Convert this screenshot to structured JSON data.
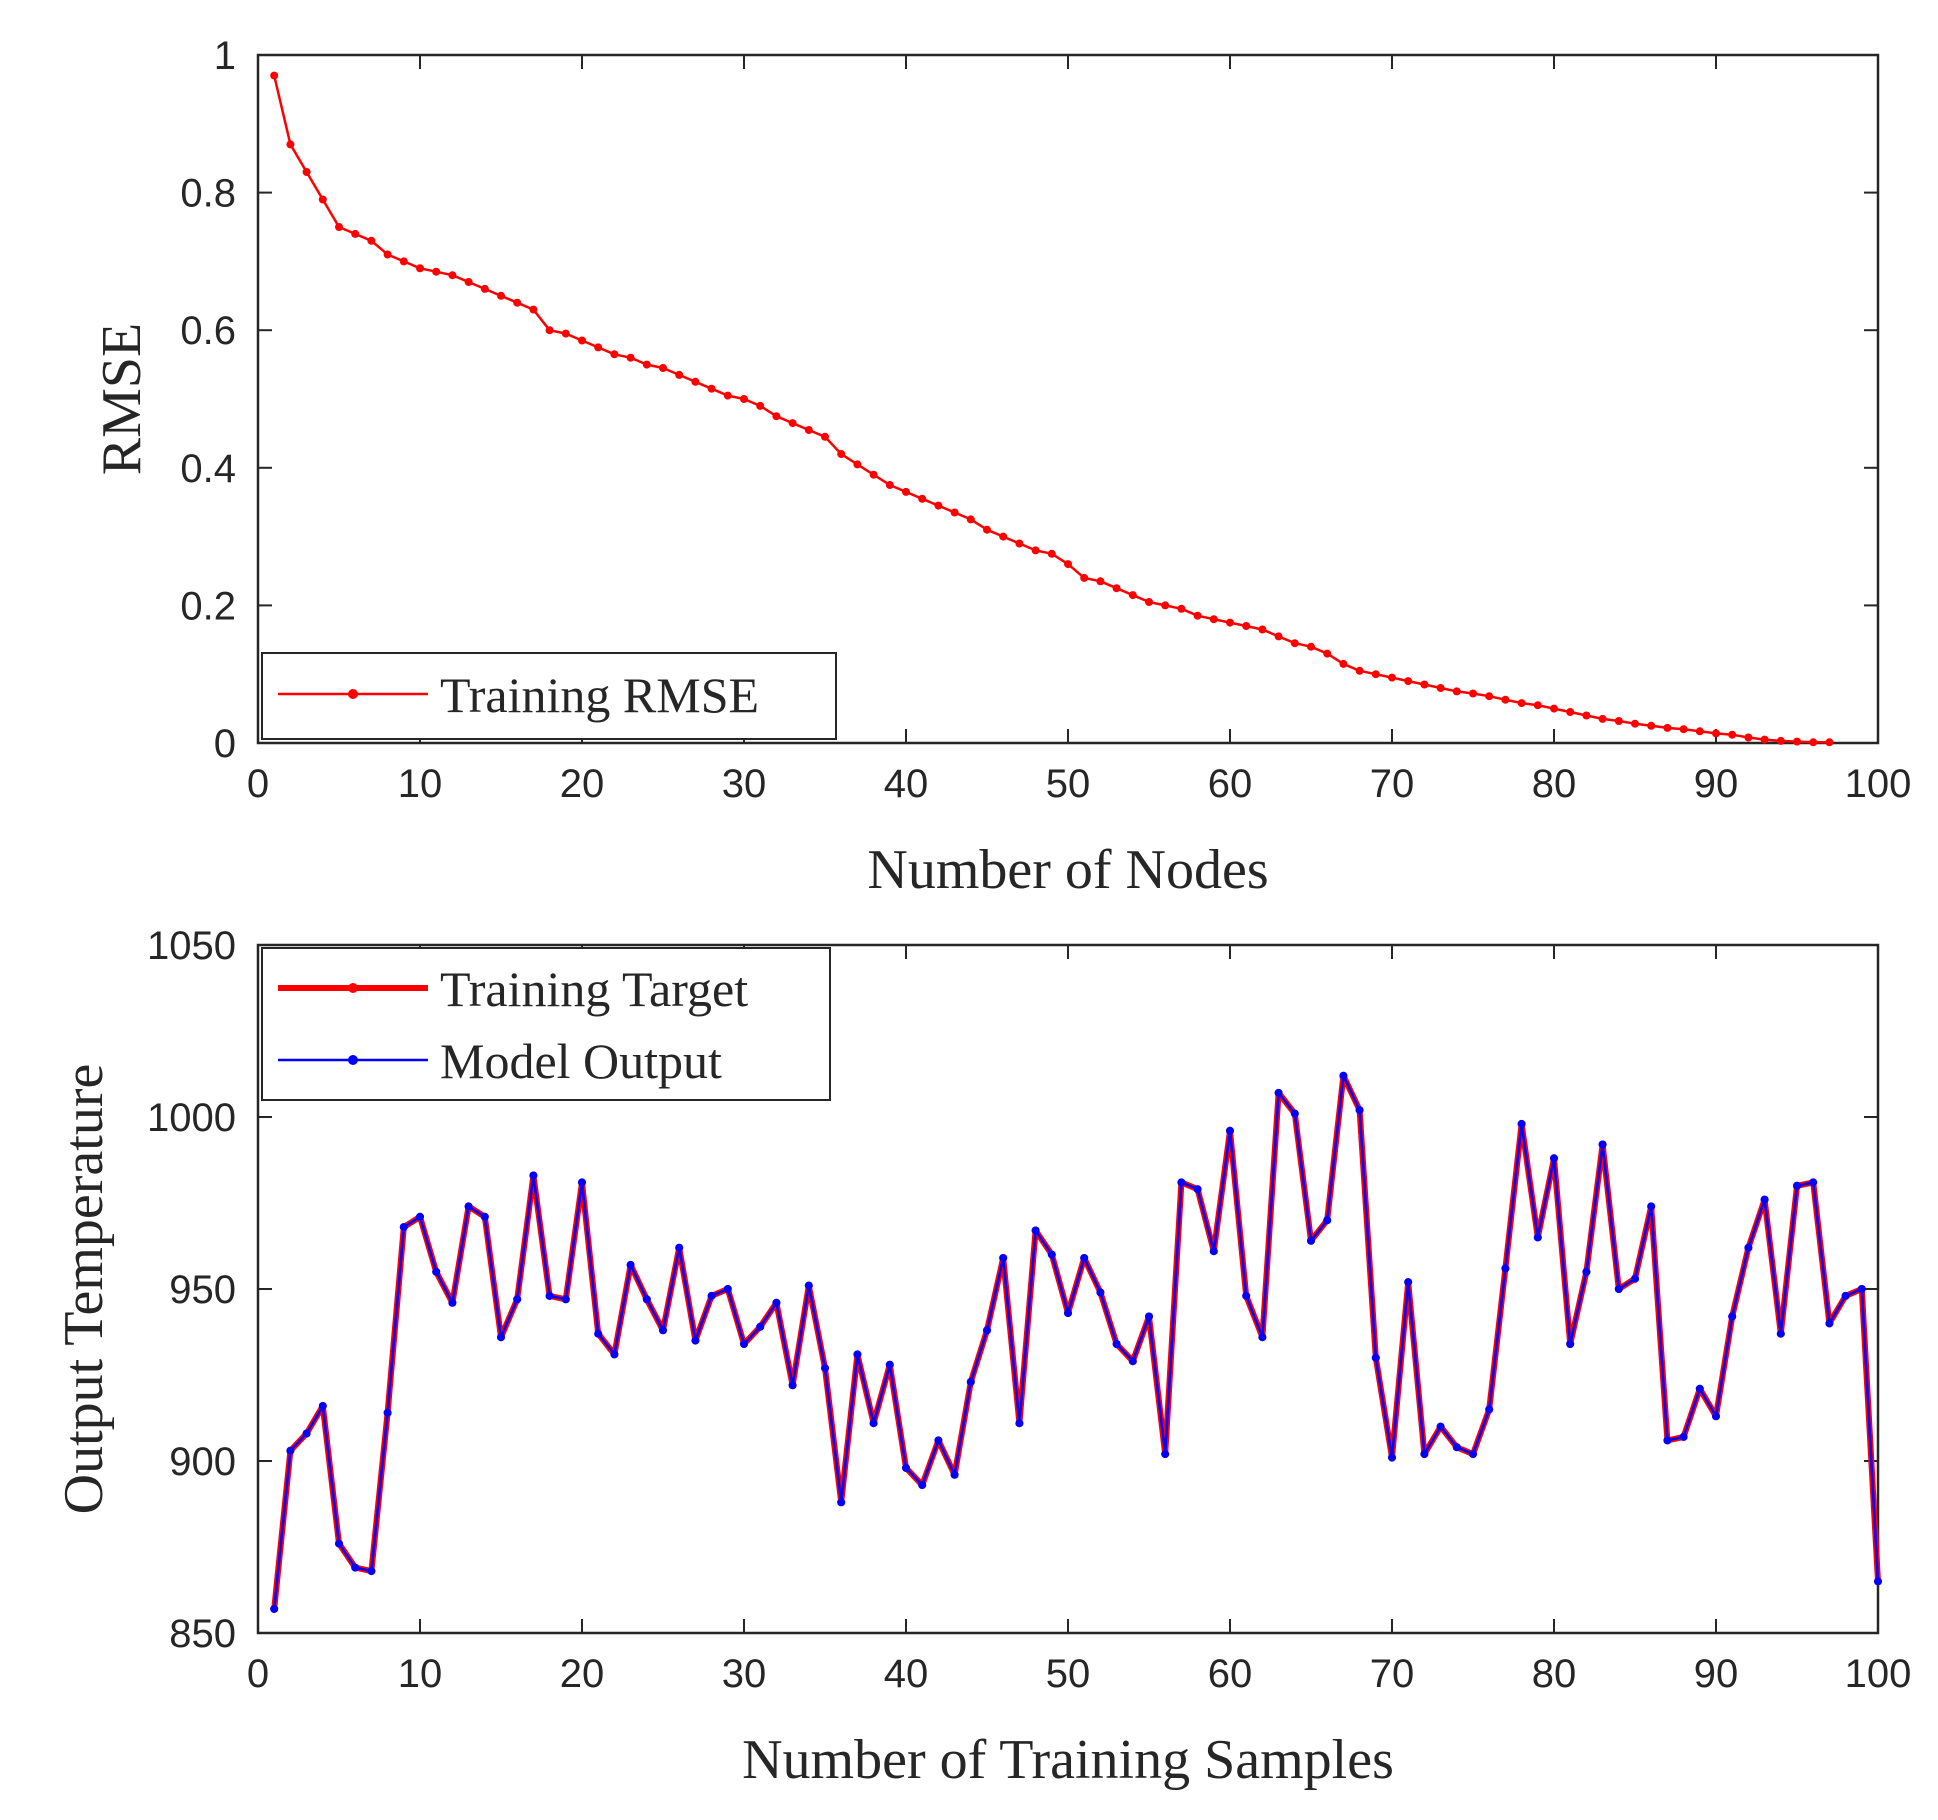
{
  "chart_data": [
    {
      "type": "line",
      "xlabel": "Number of Nodes",
      "ylabel": "RMSE",
      "xlim": [
        0,
        100
      ],
      "ylim": [
        0,
        1
      ],
      "xticks": [
        0,
        10,
        20,
        30,
        40,
        50,
        60,
        70,
        80,
        90,
        100
      ],
      "yticks": [
        0,
        0.2,
        0.4,
        0.6,
        0.8,
        1
      ],
      "ytick_labels": [
        "0",
        "0.2",
        "0.4",
        "0.6",
        "0.8",
        "1"
      ],
      "legend_position": "bottom-left",
      "series": [
        {
          "name": "Training RMSE",
          "color": "#ff0000",
          "x": [
            1,
            2,
            3,
            4,
            5,
            6,
            7,
            8,
            9,
            10,
            11,
            12,
            13,
            14,
            15,
            16,
            17,
            18,
            19,
            20,
            21,
            22,
            23,
            24,
            25,
            26,
            27,
            28,
            29,
            30,
            31,
            32,
            33,
            34,
            35,
            36,
            37,
            38,
            39,
            40,
            41,
            42,
            43,
            44,
            45,
            46,
            47,
            48,
            49,
            50,
            51,
            52,
            53,
            54,
            55,
            56,
            57,
            58,
            59,
            60,
            61,
            62,
            63,
            64,
            65,
            66,
            67,
            68,
            69,
            70,
            71,
            72,
            73,
            74,
            75,
            76,
            77,
            78,
            79,
            80,
            81,
            82,
            83,
            84,
            85,
            86,
            87,
            88,
            89,
            90,
            91,
            92,
            93,
            94,
            95,
            96,
            97
          ],
          "values": [
            0.97,
            0.87,
            0.83,
            0.79,
            0.75,
            0.74,
            0.73,
            0.71,
            0.7,
            0.69,
            0.685,
            0.68,
            0.67,
            0.66,
            0.65,
            0.64,
            0.63,
            0.6,
            0.595,
            0.585,
            0.575,
            0.565,
            0.56,
            0.55,
            0.545,
            0.535,
            0.525,
            0.515,
            0.505,
            0.5,
            0.49,
            0.475,
            0.465,
            0.455,
            0.445,
            0.42,
            0.405,
            0.39,
            0.375,
            0.365,
            0.355,
            0.345,
            0.335,
            0.325,
            0.31,
            0.3,
            0.29,
            0.28,
            0.275,
            0.26,
            0.24,
            0.235,
            0.225,
            0.215,
            0.205,
            0.2,
            0.195,
            0.185,
            0.18,
            0.175,
            0.17,
            0.165,
            0.155,
            0.145,
            0.14,
            0.13,
            0.115,
            0.105,
            0.1,
            0.095,
            0.09,
            0.085,
            0.08,
            0.075,
            0.072,
            0.068,
            0.063,
            0.058,
            0.055,
            0.05,
            0.045,
            0.04,
            0.035,
            0.032,
            0.028,
            0.025,
            0.022,
            0.02,
            0.017,
            0.014,
            0.012,
            0.008,
            0.005,
            0.003,
            0.002,
            0.001,
            0.001
          ]
        }
      ]
    },
    {
      "type": "line",
      "xlabel": "Number of Training Samples",
      "ylabel": "Output Temperature",
      "xlim": [
        0,
        100
      ],
      "ylim": [
        850,
        1050
      ],
      "xticks": [
        0,
        10,
        20,
        30,
        40,
        50,
        60,
        70,
        80,
        90,
        100
      ],
      "yticks": [
        850,
        900,
        950,
        1000,
        1050
      ],
      "ytick_labels": [
        "850",
        "900",
        "950",
        "1000",
        "1050"
      ],
      "legend_position": "top-left",
      "series": [
        {
          "name": "Training Target",
          "color": "#ff0000",
          "x": [
            1,
            2,
            3,
            4,
            5,
            6,
            7,
            8,
            9,
            10,
            11,
            12,
            13,
            14,
            15,
            16,
            17,
            18,
            19,
            20,
            21,
            22,
            23,
            24,
            25,
            26,
            27,
            28,
            29,
            30,
            31,
            32,
            33,
            34,
            35,
            36,
            37,
            38,
            39,
            40,
            41,
            42,
            43,
            44,
            45,
            46,
            47,
            48,
            49,
            50,
            51,
            52,
            53,
            54,
            55,
            56,
            57,
            58,
            59,
            60,
            61,
            62,
            63,
            64,
            65,
            66,
            67,
            68,
            69,
            70,
            71,
            72,
            73,
            74,
            75,
            76,
            77,
            78,
            79,
            80,
            81,
            82,
            83,
            84,
            85,
            86,
            87,
            88,
            89,
            90,
            91,
            92,
            93,
            94,
            95,
            96,
            97,
            98,
            99,
            100
          ],
          "values": [
            857,
            903,
            908,
            916,
            876,
            869,
            868,
            914,
            968,
            971,
            955,
            946,
            974,
            971,
            936,
            947,
            983,
            948,
            947,
            981,
            937,
            931,
            957,
            947,
            938,
            962,
            935,
            948,
            950,
            934,
            939,
            946,
            922,
            951,
            927,
            888,
            931,
            911,
            928,
            898,
            893,
            906,
            896,
            923,
            938,
            959,
            911,
            967,
            960,
            943,
            959,
            949,
            934,
            929,
            942,
            902,
            981,
            979,
            961,
            996,
            948,
            936,
            1007,
            1001,
            964,
            970,
            1012,
            1002,
            930,
            901,
            952,
            902,
            910,
            904,
            902,
            915,
            956,
            998,
            965,
            988,
            934,
            955,
            992,
            950,
            953,
            974,
            906,
            907,
            921,
            913,
            942,
            962,
            976,
            937,
            980,
            981,
            940,
            948,
            950,
            865
          ]
        },
        {
          "name": "Model Output",
          "color": "#0000ff",
          "x": [
            1,
            2,
            3,
            4,
            5,
            6,
            7,
            8,
            9,
            10,
            11,
            12,
            13,
            14,
            15,
            16,
            17,
            18,
            19,
            20,
            21,
            22,
            23,
            24,
            25,
            26,
            27,
            28,
            29,
            30,
            31,
            32,
            33,
            34,
            35,
            36,
            37,
            38,
            39,
            40,
            41,
            42,
            43,
            44,
            45,
            46,
            47,
            48,
            49,
            50,
            51,
            52,
            53,
            54,
            55,
            56,
            57,
            58,
            59,
            60,
            61,
            62,
            63,
            64,
            65,
            66,
            67,
            68,
            69,
            70,
            71,
            72,
            73,
            74,
            75,
            76,
            77,
            78,
            79,
            80,
            81,
            82,
            83,
            84,
            85,
            86,
            87,
            88,
            89,
            90,
            91,
            92,
            93,
            94,
            95,
            96,
            97,
            98,
            99,
            100
          ],
          "values": [
            857,
            903,
            908,
            916,
            876,
            869,
            868,
            914,
            968,
            971,
            955,
            946,
            974,
            971,
            936,
            947,
            983,
            948,
            947,
            981,
            937,
            931,
            957,
            947,
            938,
            962,
            935,
            948,
            950,
            934,
            939,
            946,
            922,
            951,
            927,
            888,
            931,
            911,
            928,
            898,
            893,
            906,
            896,
            923,
            938,
            959,
            911,
            967,
            960,
            943,
            959,
            949,
            934,
            929,
            942,
            902,
            981,
            979,
            961,
            996,
            948,
            936,
            1007,
            1001,
            964,
            970,
            1012,
            1002,
            930,
            901,
            952,
            902,
            910,
            904,
            902,
            915,
            956,
            998,
            965,
            988,
            934,
            955,
            992,
            950,
            953,
            974,
            906,
            907,
            921,
            913,
            942,
            962,
            976,
            937,
            980,
            981,
            940,
            948,
            950,
            865
          ]
        }
      ]
    }
  ]
}
